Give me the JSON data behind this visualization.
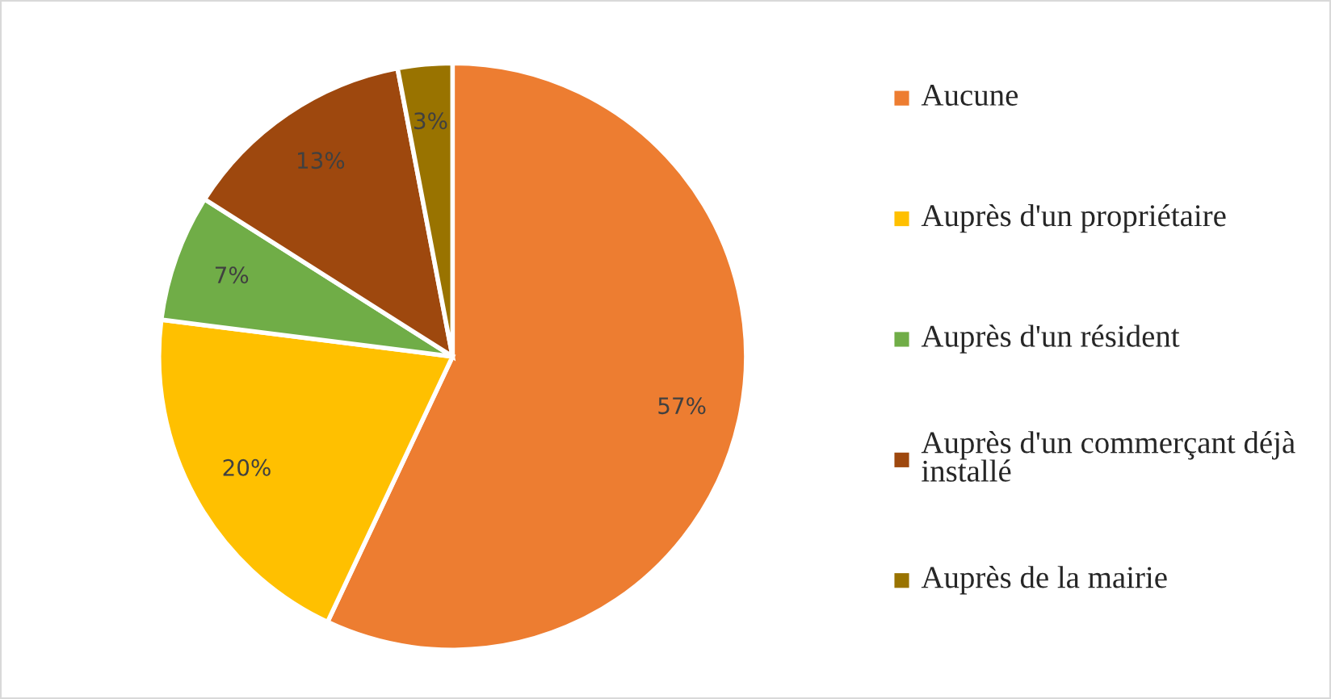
{
  "chart_data": {
    "type": "pie",
    "categories": [
      "Aucune",
      "Auprès d'un propriétaire",
      "Auprès d'un résident",
      "Auprès d'un commerçant déjà installé",
      "Auprès de la mairie"
    ],
    "values": [
      57,
      20,
      7,
      13,
      3
    ],
    "colors": [
      "#ed7d31",
      "#ffc000",
      "#70ad47",
      "#9e480e",
      "#997300"
    ],
    "value_labels": [
      "57%",
      "20%",
      "7%",
      "13%",
      "3%"
    ],
    "legend": "right"
  }
}
